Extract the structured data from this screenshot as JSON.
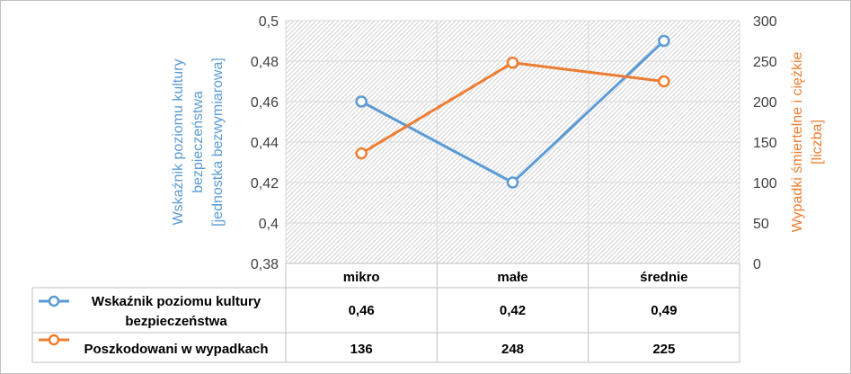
{
  "chart_data": {
    "type": "line",
    "categories": [
      "mikro",
      "małe",
      "średnie"
    ],
    "series": [
      {
        "name": "Wskaźnik poziomu kultury bezpieczeństwa",
        "name_lines": [
          "Wskaźnik poziomu kultury",
          "bezpieczeństwa"
        ],
        "axis": "left",
        "values": [
          0.46,
          0.42,
          0.49
        ],
        "labels": [
          "0,46",
          "0,42",
          "0,49"
        ],
        "color": "#5b9bd5"
      },
      {
        "name": "Poszkodowani w wypadkach",
        "name_lines": [
          "Poszkodowani w wypadkach"
        ],
        "axis": "right",
        "values": [
          136,
          248,
          225
        ],
        "labels": [
          "136",
          "248",
          "225"
        ],
        "color": "#ed7d31"
      }
    ],
    "y_left": {
      "label_lines": [
        "Wskaźnik poziomu kultury",
        "bezpieczeństwa",
        "[jednostka bezwymiarowa]"
      ],
      "ylim": [
        0.38,
        0.5
      ],
      "ticks": [
        0.38,
        0.4,
        0.42,
        0.44,
        0.46,
        0.48,
        0.5
      ],
      "tick_labels": [
        "0,38",
        "0,4",
        "0,42",
        "0,44",
        "0,46",
        "0,48",
        "0,5"
      ],
      "color": "#5b9bd5"
    },
    "y_right": {
      "label_lines": [
        "Wypadki śmiertelne i ciężkie",
        "[liczba]"
      ],
      "ylim": [
        0,
        300
      ],
      "ticks": [
        0,
        50,
        100,
        150,
        200,
        250,
        300
      ],
      "tick_labels": [
        "0",
        "50",
        "100",
        "150",
        "200",
        "250",
        "300"
      ],
      "color": "#ed7d31"
    },
    "grid": true,
    "legend": "data-table-below"
  }
}
